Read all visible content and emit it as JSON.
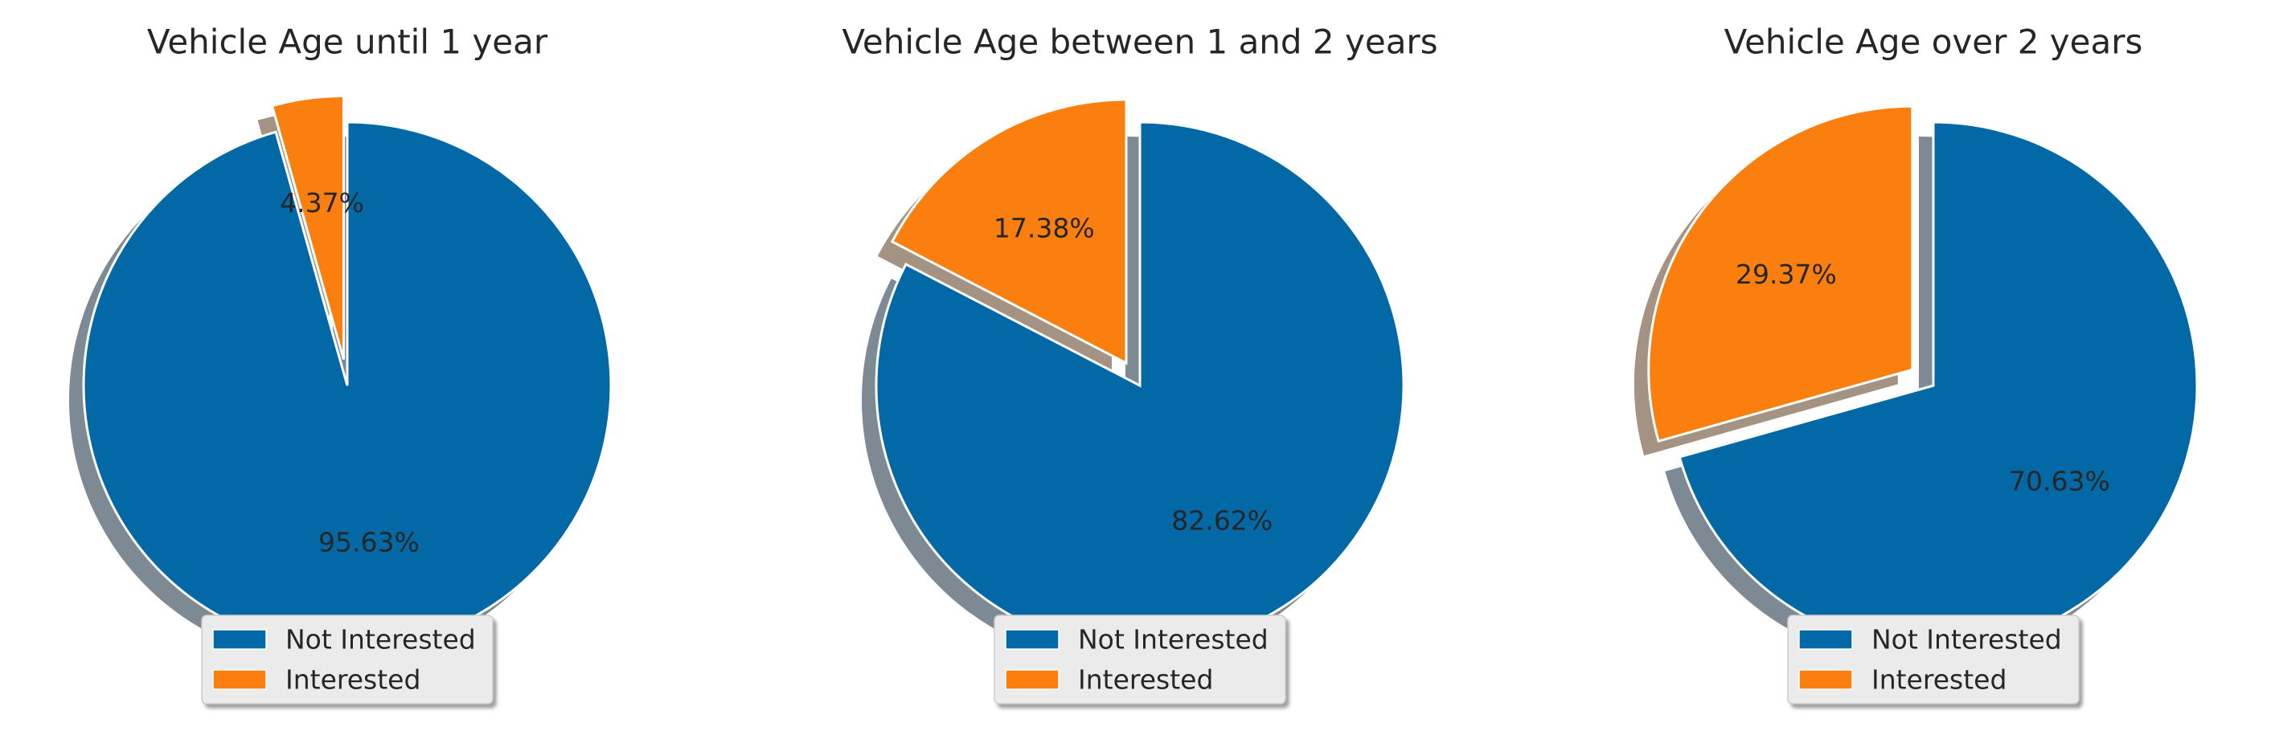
{
  "chart_data": [
    {
      "type": "pie",
      "title": "Vehicle Age until 1 year",
      "labels": [
        "Not Interested",
        "Interested"
      ],
      "values": [
        95.63,
        4.37
      ],
      "value_labels": [
        "95.63%",
        "4.37%"
      ],
      "colors": [
        "#0369a6",
        "#fb7f0f"
      ],
      "exploded": "Interested",
      "shadow": true,
      "legend": "lower-center"
    },
    {
      "type": "pie",
      "title": "Vehicle Age between 1 and 2 years",
      "labels": [
        "Not Interested",
        "Interested"
      ],
      "values": [
        82.62,
        17.38
      ],
      "value_labels": [
        "82.62%",
        "17.38%"
      ],
      "colors": [
        "#0369a6",
        "#fb7f0f"
      ],
      "exploded": "Interested",
      "shadow": true,
      "legend": "lower-center"
    },
    {
      "type": "pie",
      "title": "Vehicle Age over 2 years",
      "labels": [
        "Not Interested",
        "Interested"
      ],
      "values": [
        70.63,
        29.37
      ],
      "value_labels": [
        "70.63%",
        "29.37%"
      ],
      "colors": [
        "#0369a6",
        "#fb7f0f"
      ],
      "exploded": "Interested",
      "shadow": true,
      "legend": "lower-center"
    }
  ]
}
